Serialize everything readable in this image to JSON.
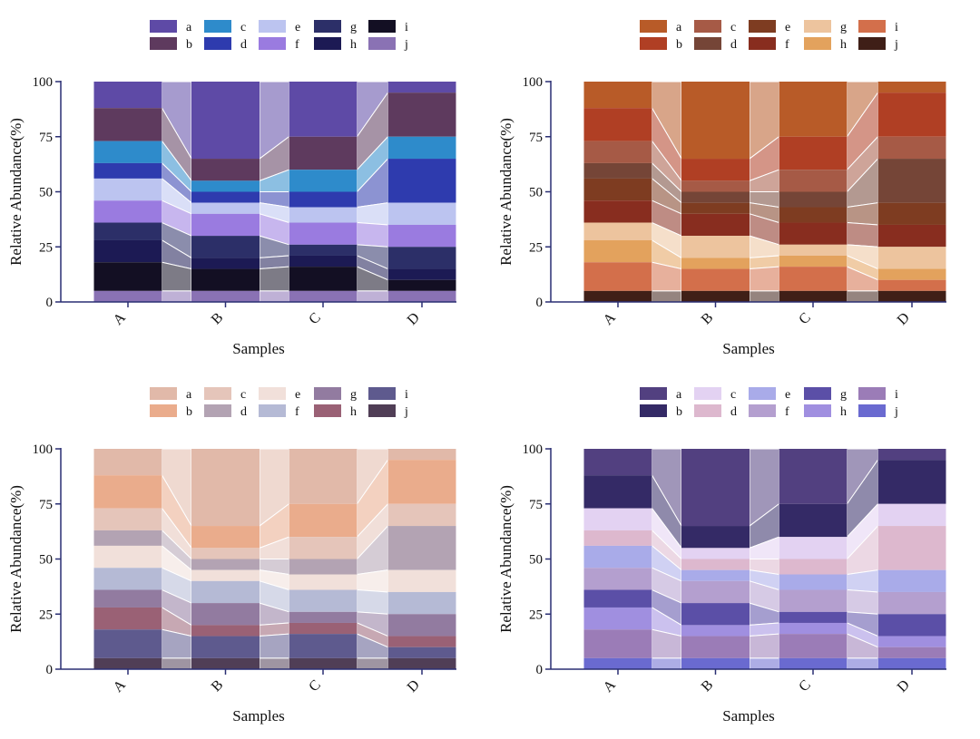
{
  "shared": {
    "categories": [
      "A",
      "B",
      "C",
      "D"
    ],
    "xlabel": "Samples",
    "ylabel": "Relative Abundance(%)",
    "ylim": [
      0,
      100
    ],
    "yticks": [
      "0",
      "25",
      "50",
      "75",
      "100"
    ],
    "legend_labels": [
      "a",
      "b",
      "c",
      "d",
      "e",
      "f",
      "g",
      "h",
      "i",
      "j"
    ]
  },
  "chart_data": [
    {
      "type": "bar",
      "stacked": true,
      "title": "",
      "xlabel": "Samples",
      "ylabel": "Relative Abundance(%)",
      "ylim": [
        0,
        100
      ],
      "legend_position": "top",
      "categories": [
        "A",
        "B",
        "C",
        "D"
      ],
      "series": [
        {
          "name": "a",
          "color": "#5E4AA6",
          "values": [
            12,
            35,
            25,
            5
          ]
        },
        {
          "name": "b",
          "color": "#5E3A5E",
          "values": [
            15,
            10,
            15,
            20
          ]
        },
        {
          "name": "c",
          "color": "#2E8BCB",
          "values": [
            10,
            5,
            10,
            10
          ]
        },
        {
          "name": "d",
          "color": "#2E3BAE",
          "values": [
            7,
            5,
            7,
            20
          ]
        },
        {
          "name": "e",
          "color": "#BCC4F0",
          "values": [
            10,
            5,
            7,
            10
          ]
        },
        {
          "name": "f",
          "color": "#9A7BE0",
          "values": [
            10,
            10,
            10,
            10
          ]
        },
        {
          "name": "g",
          "color": "#2C2F68",
          "values": [
            8,
            10,
            5,
            10
          ]
        },
        {
          "name": "h",
          "color": "#1C1A54",
          "values": [
            10,
            5,
            5,
            5
          ]
        },
        {
          "name": "i",
          "color": "#130F23",
          "values": [
            13,
            10,
            11,
            5
          ]
        },
        {
          "name": "j",
          "color": "#8A72B4",
          "values": [
            5,
            5,
            5,
            5
          ]
        }
      ]
    },
    {
      "type": "bar",
      "stacked": true,
      "title": "",
      "xlabel": "Samples",
      "ylabel": "Relative Abundance(%)",
      "ylim": [
        0,
        100
      ],
      "legend_position": "top",
      "categories": [
        "A",
        "B",
        "C",
        "D"
      ],
      "series": [
        {
          "name": "a",
          "color": "#B85B28",
          "values": [
            12,
            35,
            25,
            5
          ]
        },
        {
          "name": "b",
          "color": "#B03F24",
          "values": [
            15,
            10,
            15,
            20
          ]
        },
        {
          "name": "c",
          "color": "#A65A46",
          "values": [
            10,
            5,
            10,
            10
          ]
        },
        {
          "name": "d",
          "color": "#754537",
          "values": [
            7,
            5,
            7,
            20
          ]
        },
        {
          "name": "e",
          "color": "#7E3C21",
          "values": [
            10,
            5,
            7,
            10
          ]
        },
        {
          "name": "f",
          "color": "#882D1F",
          "values": [
            10,
            10,
            10,
            10
          ]
        },
        {
          "name": "g",
          "color": "#EDC49E",
          "values": [
            8,
            10,
            5,
            10
          ]
        },
        {
          "name": "h",
          "color": "#E3A25D",
          "values": [
            10,
            5,
            5,
            5
          ]
        },
        {
          "name": "i",
          "color": "#D36F4B",
          "values": [
            13,
            10,
            11,
            5
          ]
        },
        {
          "name": "j",
          "color": "#3F1F17",
          "values": [
            5,
            5,
            5,
            5
          ]
        }
      ]
    },
    {
      "type": "bar",
      "stacked": true,
      "title": "",
      "xlabel": "Samples",
      "ylabel": "Relative Abundance(%)",
      "ylim": [
        0,
        100
      ],
      "legend_position": "top",
      "categories": [
        "A",
        "B",
        "C",
        "D"
      ],
      "series": [
        {
          "name": "a",
          "color": "#E1B9A9",
          "values": [
            12,
            35,
            25,
            5
          ]
        },
        {
          "name": "b",
          "color": "#EAAC8C",
          "values": [
            15,
            10,
            15,
            20
          ]
        },
        {
          "name": "c",
          "color": "#E5C5BA",
          "values": [
            10,
            5,
            10,
            10
          ]
        },
        {
          "name": "d",
          "color": "#B3A3B3",
          "values": [
            7,
            5,
            7,
            20
          ]
        },
        {
          "name": "e",
          "color": "#F1E0DA",
          "values": [
            10,
            5,
            7,
            10
          ]
        },
        {
          "name": "f",
          "color": "#B5BAD5",
          "values": [
            10,
            10,
            10,
            10
          ]
        },
        {
          "name": "g",
          "color": "#927BA0",
          "values": [
            8,
            10,
            5,
            10
          ]
        },
        {
          "name": "h",
          "color": "#9A6175",
          "values": [
            10,
            5,
            5,
            5
          ]
        },
        {
          "name": "i",
          "color": "#5E5A8E",
          "values": [
            13,
            10,
            11,
            5
          ]
        },
        {
          "name": "j",
          "color": "#503E56",
          "values": [
            5,
            5,
            5,
            5
          ]
        }
      ]
    },
    {
      "type": "bar",
      "stacked": true,
      "title": "",
      "xlabel": "Samples",
      "ylabel": "Relative Abundance(%)",
      "ylim": [
        0,
        100
      ],
      "legend_position": "top",
      "categories": [
        "A",
        "B",
        "C",
        "D"
      ],
      "series": [
        {
          "name": "a",
          "color": "#524080",
          "values": [
            12,
            35,
            25,
            5
          ]
        },
        {
          "name": "b",
          "color": "#342A66",
          "values": [
            15,
            10,
            15,
            20
          ]
        },
        {
          "name": "c",
          "color": "#E3D2F2",
          "values": [
            10,
            5,
            10,
            10
          ]
        },
        {
          "name": "d",
          "color": "#DDB8CE",
          "values": [
            7,
            5,
            7,
            20
          ]
        },
        {
          "name": "e",
          "color": "#A9ABE9",
          "values": [
            10,
            5,
            7,
            10
          ]
        },
        {
          "name": "f",
          "color": "#B49FCF",
          "values": [
            10,
            10,
            10,
            10
          ]
        },
        {
          "name": "g",
          "color": "#5B4FA7",
          "values": [
            8,
            10,
            5,
            10
          ]
        },
        {
          "name": "h",
          "color": "#A08FE0",
          "values": [
            10,
            5,
            5,
            5
          ]
        },
        {
          "name": "i",
          "color": "#9B7CB7",
          "values": [
            13,
            10,
            11,
            5
          ]
        },
        {
          "name": "j",
          "color": "#6A6AD0",
          "values": [
            5,
            5,
            5,
            5
          ]
        }
      ]
    }
  ]
}
